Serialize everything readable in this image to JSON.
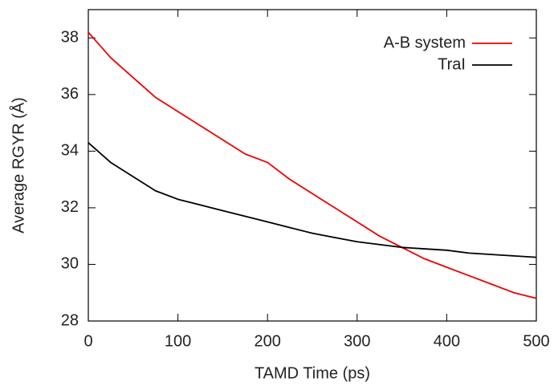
{
  "chart_data": {
    "type": "line",
    "x_label": "TAMD Time (ps)",
    "y_label": "Average RGYR (Å)",
    "x": [
      0,
      25,
      50,
      75,
      100,
      125,
      150,
      175,
      200,
      225,
      250,
      275,
      300,
      325,
      350,
      375,
      400,
      425,
      450,
      475,
      500
    ],
    "series": [
      {
        "name": "A-B system",
        "color": "#ee0000",
        "values": [
          38.2,
          37.3,
          36.6,
          35.9,
          35.4,
          34.9,
          34.4,
          33.9,
          33.6,
          33.0,
          32.5,
          32.0,
          31.5,
          31.0,
          30.6,
          30.2,
          29.9,
          29.6,
          29.3,
          29.0,
          28.8
        ]
      },
      {
        "name": "TraI",
        "color": "#000000",
        "values": [
          34.3,
          33.6,
          33.1,
          32.6,
          32.3,
          32.1,
          31.9,
          31.7,
          31.5,
          31.3,
          31.1,
          30.95,
          30.8,
          30.7,
          30.6,
          30.55,
          30.5,
          30.4,
          30.35,
          30.3,
          30.25
        ]
      }
    ],
    "xlim": [
      0,
      500
    ],
    "xticks": [
      0,
      100,
      200,
      300,
      400,
      500
    ],
    "ylim": [
      28,
      39
    ],
    "yticks": [
      28,
      30,
      32,
      34,
      36,
      38
    ],
    "grid": false,
    "legend": "upper right"
  }
}
